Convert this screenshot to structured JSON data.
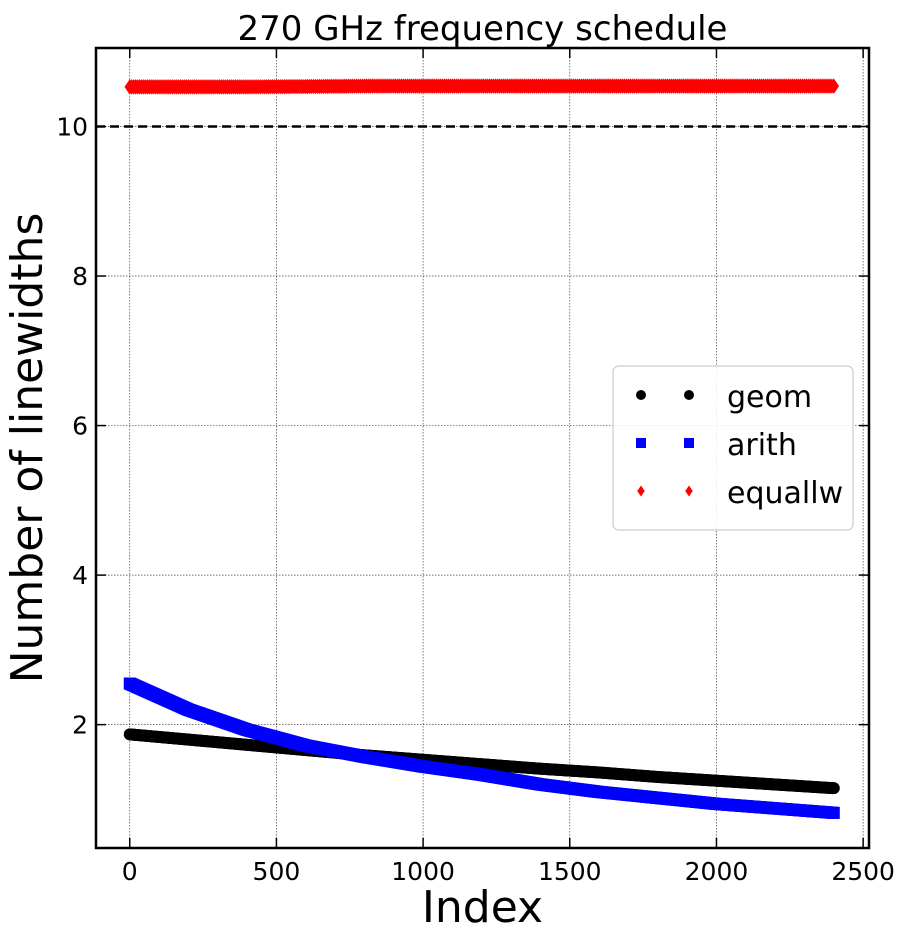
{
  "chart_data": {
    "type": "scatter",
    "title": "270 GHz frequency schedule",
    "xlabel": "Index",
    "ylabel": "Number of linewidths",
    "xlim": [
      -115,
      2520
    ],
    "ylim": [
      0.35,
      11.05
    ],
    "xticks": [
      0,
      500,
      1000,
      1500,
      2000,
      2500
    ],
    "yticks": [
      2,
      4,
      6,
      8,
      10
    ],
    "grid": true,
    "legend_position": "center-right",
    "reference_line": {
      "y": 10,
      "style": "dashed",
      "color": "#000000"
    },
    "series": [
      {
        "name": "geom",
        "marker": "circle",
        "color": "#000000",
        "x": [
          0,
          200,
          400,
          600,
          800,
          1000,
          1200,
          1400,
          1600,
          1800,
          2000,
          2200,
          2400
        ],
        "y": [
          1.87,
          1.8,
          1.73,
          1.66,
          1.59,
          1.53,
          1.47,
          1.41,
          1.36,
          1.3,
          1.25,
          1.2,
          1.15
        ]
      },
      {
        "name": "arith",
        "marker": "square",
        "color": "#0000ff",
        "x": [
          0,
          200,
          400,
          600,
          800,
          1000,
          1200,
          1400,
          1600,
          1800,
          2000,
          2200,
          2400
        ],
        "y": [
          2.55,
          2.2,
          1.93,
          1.72,
          1.57,
          1.44,
          1.33,
          1.2,
          1.1,
          1.02,
          0.94,
          0.88,
          0.82
        ]
      },
      {
        "name": "equallw",
        "marker": "diamond",
        "color": "#ff0000",
        "x": [
          0,
          400,
          800,
          1200,
          1600,
          2000,
          2400
        ],
        "y": [
          10.53,
          10.53,
          10.54,
          10.54,
          10.54,
          10.54,
          10.54
        ]
      }
    ]
  }
}
